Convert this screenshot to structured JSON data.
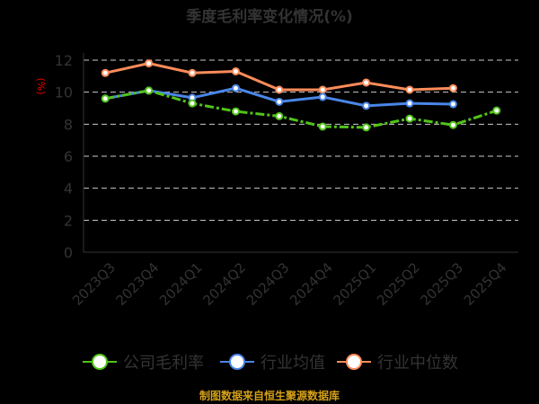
{
  "chart_data": {
    "type": "line",
    "title": "季度毛利率变化情况(%)",
    "ylabel": "(%)",
    "ylim": [
      0,
      12
    ],
    "yticks": [
      0,
      2,
      4,
      6,
      8,
      10,
      12
    ],
    "grid": true,
    "legend_position": "bottom",
    "categories": [
      "2023Q3",
      "2023Q4",
      "2024Q1",
      "2024Q2",
      "2024Q3",
      "2024Q4",
      "2025Q1",
      "2025Q2",
      "2025Q3",
      "2025Q4"
    ],
    "series": [
      {
        "name": "公司毛利率",
        "color": "#52c41a",
        "values": [
          9.6,
          10.1,
          9.3,
          8.8,
          8.5,
          7.85,
          7.8,
          8.35,
          7.95,
          8.85
        ]
      },
      {
        "name": "行业均值",
        "color": "#4a86e8",
        "values": [
          9.6,
          10.1,
          9.65,
          10.25,
          9.4,
          9.7,
          9.15,
          9.3,
          9.25,
          null
        ]
      },
      {
        "name": "行业中位数",
        "color": "#ff8c5a",
        "values": [
          11.2,
          11.8,
          11.2,
          11.3,
          10.15,
          10.15,
          10.6,
          10.15,
          10.25,
          null
        ]
      }
    ],
    "source": "制图数据来自恒生聚源数据库"
  }
}
